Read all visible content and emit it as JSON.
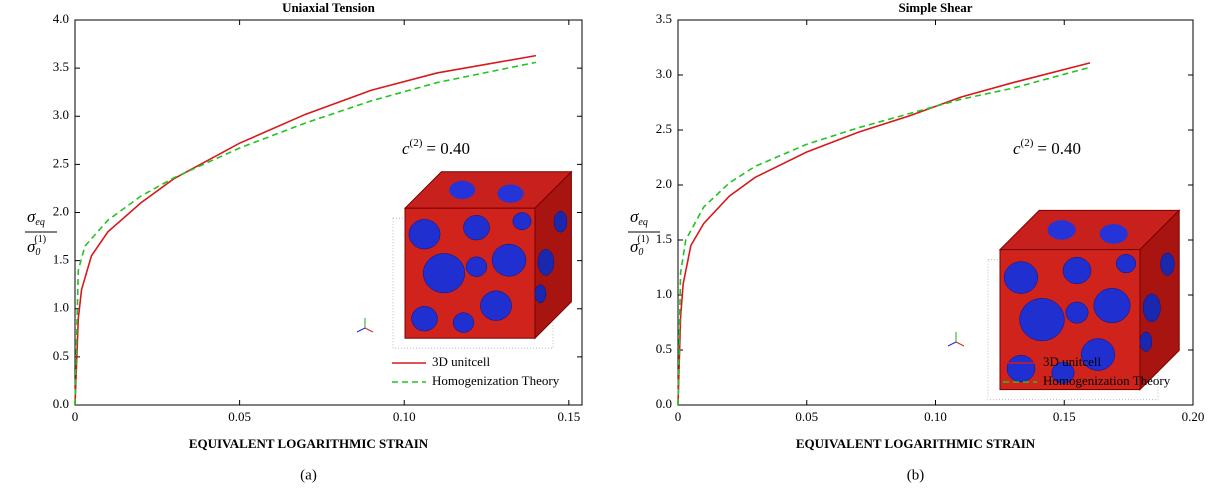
{
  "chart_data": [
    {
      "type": "line",
      "title": "Uniaxial Tension",
      "caption": "(a)",
      "xlabel": "EQUIVALENT LOGARITHMIC STRAIN",
      "ylabel": {
        "numerator": "σ",
        "numerator_sub": "eq",
        "denominator": "σ",
        "denominator_sub": "0",
        "denominator_sup": "(1)"
      },
      "annotation": {
        "symbol": "c",
        "sup": "(2)",
        "text": "= 0.40"
      },
      "xlim": [
        0,
        0.154
      ],
      "ylim": [
        0,
        4.0
      ],
      "xticks": [
        0,
        0.05,
        {
          "value": 0.1,
          "label": "0.10"
        },
        0.15
      ],
      "yticks": [
        {
          "value": 0,
          "label": "0.0"
        },
        0.5,
        {
          "value": 1,
          "label": "1.0"
        },
        1.5,
        {
          "value": 2,
          "label": "2.0"
        },
        2.5,
        {
          "value": 3,
          "label": "3.0"
        },
        3.5,
        {
          "value": 4,
          "label": "4.0"
        }
      ],
      "legend": "lower right",
      "series": [
        {
          "name": "3D unitcell",
          "color": "#d7191c",
          "dash": false,
          "x": [
            0,
            0.001,
            0.002,
            0.005,
            0.01,
            0.02,
            0.03,
            0.05,
            0.07,
            0.09,
            0.11,
            0.14
          ],
          "values": [
            0,
            0.9,
            1.2,
            1.55,
            1.8,
            2.1,
            2.35,
            2.72,
            3.02,
            3.27,
            3.45,
            3.63
          ]
        },
        {
          "name": "Homogenization Theory",
          "color": "#22c322",
          "dash": true,
          "x": [
            0,
            0.001,
            0.003,
            0.01,
            0.02,
            0.03,
            0.05,
            0.07,
            0.09,
            0.11,
            0.14
          ],
          "values": [
            0,
            1.4,
            1.65,
            1.92,
            2.17,
            2.36,
            2.67,
            2.93,
            3.16,
            3.35,
            3.56
          ]
        }
      ]
    },
    {
      "type": "line",
      "title": "Simple Shear",
      "caption": "(b)",
      "xlabel": "EQUIVALENT LOGARITHMIC STRAIN",
      "ylabel": {
        "numerator": "σ",
        "numerator_sub": "eq",
        "denominator": "σ",
        "denominator_sub": "0",
        "denominator_sup": "(1)"
      },
      "annotation": {
        "symbol": "c",
        "sup": "(2)",
        "text": "= 0.40"
      },
      "xlim": [
        0,
        0.2
      ],
      "ylim": [
        0,
        3.5
      ],
      "xticks": [
        0,
        0.05,
        {
          "value": 0.1,
          "label": "0.10"
        },
        0.15,
        {
          "value": 0.2,
          "label": "0.20"
        }
      ],
      "yticks": [
        {
          "value": 0,
          "label": "0.0"
        },
        0.5,
        {
          "value": 1,
          "label": "1.0"
        },
        1.5,
        {
          "value": 2,
          "label": "2.0"
        },
        2.5,
        {
          "value": 3,
          "label": "3.0"
        },
        3.5
      ],
      "legend": "lower right",
      "series": [
        {
          "name": "3D unitcell",
          "color": "#d7191c",
          "dash": false,
          "x": [
            0,
            0.001,
            0.002,
            0.005,
            0.01,
            0.02,
            0.03,
            0.05,
            0.07,
            0.09,
            0.11,
            0.13,
            0.16
          ],
          "values": [
            0,
            0.8,
            1.1,
            1.45,
            1.65,
            1.9,
            2.07,
            2.3,
            2.48,
            2.63,
            2.8,
            2.93,
            3.11
          ]
        },
        {
          "name": "Homogenization Theory",
          "color": "#22c322",
          "dash": true,
          "x": [
            0,
            0.001,
            0.003,
            0.01,
            0.02,
            0.03,
            0.05,
            0.07,
            0.09,
            0.11,
            0.13,
            0.16
          ],
          "values": [
            0,
            1.2,
            1.5,
            1.8,
            2.02,
            2.17,
            2.37,
            2.52,
            2.65,
            2.78,
            2.88,
            3.07
          ]
        }
      ]
    }
  ]
}
